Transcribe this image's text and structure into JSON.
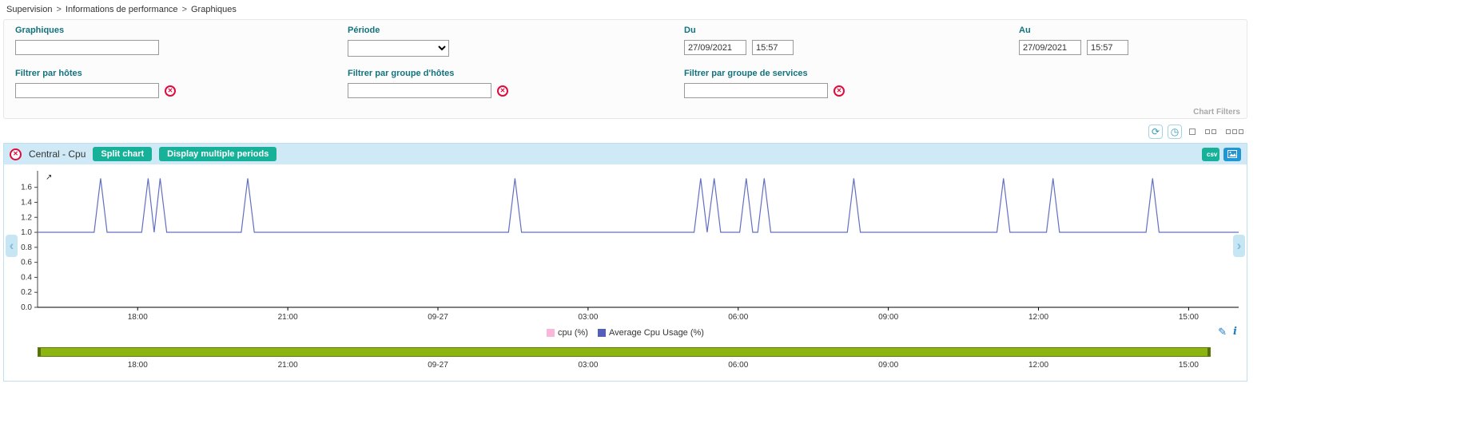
{
  "breadcrumb": {
    "items": [
      "Supervision",
      "Informations de performance",
      "Graphiques"
    ],
    "separator": ">"
  },
  "filters": {
    "graphs": {
      "label": "Graphiques",
      "value": ""
    },
    "period": {
      "label": "Période",
      "value": ""
    },
    "from": {
      "label": "Du",
      "date": "27/09/2021",
      "time": "15:57"
    },
    "to": {
      "label": "Au",
      "date": "27/09/2021",
      "time": "15:57"
    },
    "host": {
      "label": "Filtrer par hôtes",
      "value": ""
    },
    "hostgroup": {
      "label": "Filtrer par groupe d'hôtes",
      "value": ""
    },
    "servicegroup": {
      "label": "Filtrer par groupe de services",
      "value": ""
    },
    "panel_caption": "Chart Filters"
  },
  "chart": {
    "title": "Central - Cpu",
    "split_button": "Split chart",
    "periods_button": "Display multiple periods",
    "csv_label": "csv"
  },
  "chart_data": {
    "type": "line",
    "title": "Central - Cpu",
    "xlim": [
      0,
      24
    ],
    "ylim": [
      0,
      1.82
    ],
    "y_ticks": [
      0.0,
      0.2,
      0.4,
      0.6,
      0.8,
      1.0,
      1.2,
      1.4,
      1.6
    ],
    "x_ticks": [
      {
        "t": 2,
        "label": "18:00"
      },
      {
        "t": 5,
        "label": "21:00"
      },
      {
        "t": 8,
        "label": "09-27"
      },
      {
        "t": 11,
        "label": "03:00"
      },
      {
        "t": 14,
        "label": "06:00"
      },
      {
        "t": 17,
        "label": "09:00"
      },
      {
        "t": 20,
        "label": "12:00"
      },
      {
        "t": 23,
        "label": "15:00"
      }
    ],
    "legend": [
      {
        "name": "cpu (%)",
        "color": "#f9b7d9"
      },
      {
        "name": "Average Cpu Usage (%)",
        "color": "#5460b8"
      }
    ],
    "series": [
      {
        "name": "Average Cpu Usage (%)",
        "color": "#636fc2",
        "baseline": 1.0,
        "points": [
          [
            0,
            1
          ],
          [
            1.13,
            1
          ],
          [
            1.26,
            1.72
          ],
          [
            1.39,
            1
          ],
          [
            2.08,
            1
          ],
          [
            2.21,
            1.72
          ],
          [
            2.33,
            1
          ],
          [
            2.45,
            1.72
          ],
          [
            2.58,
            1
          ],
          [
            4.07,
            1
          ],
          [
            4.2,
            1.72
          ],
          [
            4.33,
            1
          ],
          [
            9.41,
            1
          ],
          [
            9.54,
            1.72
          ],
          [
            9.67,
            1
          ],
          [
            13.12,
            1
          ],
          [
            13.25,
            1.72
          ],
          [
            13.38,
            1
          ],
          [
            13.52,
            1.72
          ],
          [
            13.65,
            1
          ],
          [
            14.03,
            1
          ],
          [
            14.16,
            1.72
          ],
          [
            14.29,
            1
          ],
          [
            14.39,
            1
          ],
          [
            14.52,
            1.72
          ],
          [
            14.65,
            1
          ],
          [
            16.18,
            1
          ],
          [
            16.31,
            1.72
          ],
          [
            16.44,
            1
          ],
          [
            19.17,
            1
          ],
          [
            19.3,
            1.72
          ],
          [
            19.43,
            1
          ],
          [
            20.16,
            1
          ],
          [
            20.29,
            1.72
          ],
          [
            20.42,
            1
          ],
          [
            22.15,
            1
          ],
          [
            22.28,
            1.72
          ],
          [
            22.41,
            1
          ],
          [
            24,
            1
          ]
        ]
      }
    ]
  },
  "icons": {
    "close": "✕",
    "clear": "✕",
    "refresh": "⟳",
    "auto_refresh": "◷",
    "chev_left": "‹",
    "chev_right": "›",
    "pencil": "✎",
    "info": "i",
    "marker": "↗"
  },
  "colors": {
    "accent_teal": "#16b198",
    "header_bg": "#cfeaf6",
    "line_blue": "#636fc2",
    "legend_pink": "#f9b7d9",
    "legend_blue": "#5460b8",
    "range_green": "#8cb511",
    "alert_red": "#e00b3c",
    "export_blue": "#2196d4",
    "label_teal": "#11737e"
  }
}
